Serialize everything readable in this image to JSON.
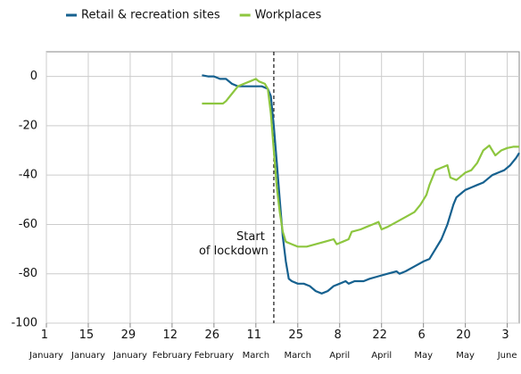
{
  "chart_data": {
    "type": "line",
    "xlim": [
      1,
      159
    ],
    "ylim": [
      -100,
      10
    ],
    "xticks": [
      {
        "value": 1,
        "label": "1 January"
      },
      {
        "value": 15,
        "label": "15 January"
      },
      {
        "value": 29,
        "label": "29 January"
      },
      {
        "value": 43,
        "label": "12 February"
      },
      {
        "value": 57,
        "label": "26 February"
      },
      {
        "value": 71,
        "label": "11 March"
      },
      {
        "value": 85,
        "label": "25 March"
      },
      {
        "value": 99,
        "label": "8 April"
      },
      {
        "value": 113,
        "label": "22 April"
      },
      {
        "value": 127,
        "label": "6 May"
      },
      {
        "value": 141,
        "label": "20 May"
      },
      {
        "value": 155,
        "label": "3 June"
      }
    ],
    "yticks": [
      -100,
      -80,
      -60,
      -40,
      -20,
      0
    ],
    "grid": true,
    "annotation": {
      "x": 77,
      "label": "Start of lockdown"
    },
    "series": [
      {
        "name": "Retail & recreation sites",
        "color": "#16618f",
        "x": [
          53,
          55,
          57,
          59,
          61,
          63,
          65,
          67,
          69,
          71,
          73,
          75,
          76,
          77,
          78,
          79,
          80,
          81,
          82,
          83,
          85,
          87,
          89,
          91,
          93,
          95,
          97,
          99,
          101,
          102,
          104,
          107,
          109,
          112,
          115,
          118,
          119,
          121,
          124,
          127,
          129,
          131,
          133,
          135,
          137,
          138,
          140,
          141,
          143,
          145,
          147,
          148,
          150,
          152,
          154,
          156,
          158,
          159
        ],
        "values": [
          0.5,
          0,
          0,
          -1,
          -1,
          -3,
          -4,
          -4,
          -4,
          -4,
          -4,
          -5,
          -8,
          -20,
          -35,
          -50,
          -65,
          -75,
          -82,
          -83,
          -84,
          -84,
          -85,
          -87,
          -88,
          -87,
          -85,
          -84,
          -83,
          -84,
          -83,
          -83,
          -82,
          -81,
          -80,
          -79,
          -80,
          -79,
          -77,
          -75,
          -74,
          -70,
          -66,
          -60,
          -52,
          -49,
          -47,
          -46,
          -45,
          -44,
          -43,
          -42,
          -40,
          -39,
          -38,
          -36,
          -33,
          -31
        ]
      },
      {
        "name": "Workplaces",
        "color": "#8dc63f",
        "x": [
          53,
          55,
          57,
          60,
          61,
          63,
          65,
          67,
          69,
          71,
          72,
          74,
          75,
          76,
          77,
          78,
          79,
          80,
          81,
          83,
          85,
          88,
          91,
          94,
          97,
          98,
          100,
          102,
          103,
          106,
          108,
          110,
          112,
          113,
          115,
          118,
          121,
          124,
          126,
          128,
          129,
          131,
          133,
          135,
          136,
          138,
          140,
          141,
          143,
          145,
          147,
          149,
          151,
          152,
          153,
          155,
          157,
          159
        ],
        "values": [
          -11,
          -11,
          -11,
          -11,
          -10,
          -7,
          -4,
          -3,
          -2,
          -1,
          -2,
          -3,
          -5,
          -15,
          -30,
          -45,
          -55,
          -63,
          -67,
          -68,
          -69,
          -69,
          -68,
          -67,
          -66,
          -68,
          -67,
          -66,
          -63,
          -62,
          -61,
          -60,
          -59,
          -62,
          -61,
          -59,
          -57,
          -55,
          -52,
          -48,
          -44,
          -38,
          -37,
          -36,
          -41,
          -42,
          -40,
          -39,
          -38,
          -35,
          -30,
          -28,
          -32,
          -31,
          -30,
          -29,
          -28.5,
          -28.5
        ]
      }
    ]
  }
}
